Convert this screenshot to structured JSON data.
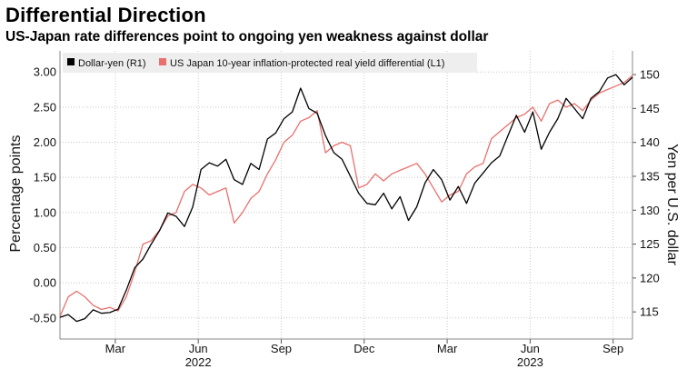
{
  "chart_data": {
    "type": "line",
    "title": "Differential Direction",
    "subtitle": "US-Japan rate differences point to ongoing yen weakness against dollar",
    "ylabel_left": "Percentage points",
    "ylabel_right": "Yen per U.S. dollar",
    "left_axis": {
      "min": -0.8,
      "max": 3.3,
      "ticks": [
        "-0.50",
        "0.00",
        "0.50",
        "1.00",
        "1.50",
        "2.00",
        "2.50",
        "3.00"
      ],
      "tick_values": [
        -0.5,
        0,
        0.5,
        1,
        1.5,
        2,
        2.5,
        3
      ]
    },
    "right_axis": {
      "min": 111,
      "max": 153.5,
      "ticks": [
        "115",
        "120",
        "125",
        "130",
        "135",
        "140",
        "145",
        "150"
      ],
      "tick_values": [
        115,
        120,
        125,
        130,
        135,
        140,
        145,
        150
      ]
    },
    "x_range_months": [
      0,
      20.7
    ],
    "x_ticks": [
      {
        "label": "Mar",
        "month": 2
      },
      {
        "label": "Jun",
        "month": 5
      },
      {
        "label": "Sep",
        "month": 8
      },
      {
        "label": "Dec",
        "month": 11
      },
      {
        "label": "Mar",
        "month": 14
      },
      {
        "label": "Jun",
        "month": 17
      },
      {
        "label": "Sep",
        "month": 20
      }
    ],
    "year_labels": [
      {
        "label": "2022",
        "month": 5
      },
      {
        "label": "2023",
        "month": 17
      }
    ],
    "grid": true,
    "legend_position": "top",
    "series": [
      {
        "name": "Dollar-yen (R1)",
        "axis": "right",
        "color": "#000000",
        "x": [
          0,
          0.3,
          0.6,
          0.9,
          1.2,
          1.5,
          1.8,
          2.1,
          2.4,
          2.7,
          3.0,
          3.3,
          3.6,
          3.9,
          4.2,
          4.5,
          4.8,
          5.1,
          5.4,
          5.7,
          6.0,
          6.3,
          6.6,
          6.9,
          7.2,
          7.5,
          7.8,
          8.1,
          8.4,
          8.7,
          9.0,
          9.3,
          9.6,
          9.9,
          10.2,
          10.5,
          10.8,
          11.1,
          11.4,
          11.7,
          12.0,
          12.3,
          12.6,
          12.9,
          13.2,
          13.5,
          13.8,
          14.1,
          14.4,
          14.7,
          15.0,
          15.3,
          15.6,
          15.9,
          16.2,
          16.5,
          16.8,
          17.1,
          17.4,
          17.7,
          18.0,
          18.3,
          18.6,
          18.9,
          19.2,
          19.5,
          19.8,
          20.1,
          20.4,
          20.7
        ],
        "values": [
          114.2,
          114.6,
          113.6,
          114.0,
          115.3,
          114.8,
          114.9,
          115.4,
          118.2,
          121.5,
          122.8,
          125.0,
          127.0,
          129.6,
          129.1,
          127.6,
          130.5,
          136.0,
          137.0,
          136.5,
          137.5,
          134.5,
          133.8,
          136.9,
          136.0,
          140.5,
          141.4,
          143.5,
          144.5,
          148.0,
          145.0,
          144.3,
          141.0,
          138.5,
          137.5,
          135.0,
          132.5,
          131.0,
          130.8,
          132.5,
          130.2,
          132.0,
          128.5,
          130.5,
          134.0,
          136.0,
          134.5,
          131.5,
          133.5,
          131.0,
          134.0,
          135.5,
          137.0,
          138.0,
          141.0,
          144.0,
          141.5,
          144.5,
          139.0,
          141.5,
          143.5,
          146.5,
          145.0,
          143.5,
          146.5,
          147.5,
          149.5,
          150.0,
          148.5,
          149.6
        ]
      },
      {
        "name": "US Japan 10-year inflation-protected real yield differential (L1)",
        "axis": "left",
        "color": "#e8706d",
        "x": [
          0,
          0.3,
          0.6,
          0.9,
          1.2,
          1.5,
          1.8,
          2.1,
          2.4,
          2.7,
          3.0,
          3.3,
          3.6,
          3.9,
          4.2,
          4.5,
          4.8,
          5.1,
          5.4,
          5.7,
          6.0,
          6.3,
          6.6,
          6.9,
          7.2,
          7.5,
          7.8,
          8.1,
          8.4,
          8.7,
          9.0,
          9.3,
          9.6,
          9.9,
          10.2,
          10.5,
          10.8,
          11.1,
          11.4,
          11.7,
          12.0,
          12.3,
          12.6,
          12.9,
          13.2,
          13.5,
          13.8,
          14.1,
          14.4,
          14.7,
          15.0,
          15.3,
          15.6,
          15.9,
          16.2,
          16.5,
          16.8,
          17.1,
          17.4,
          17.7,
          18.0,
          18.3,
          18.6,
          18.9,
          19.2,
          19.5,
          19.8,
          20.1,
          20.4,
          20.7
        ],
        "values": [
          -0.48,
          -0.2,
          -0.12,
          -0.2,
          -0.32,
          -0.38,
          -0.35,
          -0.4,
          -0.2,
          0.15,
          0.55,
          0.6,
          0.75,
          0.95,
          1.0,
          1.3,
          1.4,
          1.35,
          1.25,
          1.3,
          1.35,
          0.85,
          1.0,
          1.2,
          1.3,
          1.55,
          1.75,
          2.0,
          2.1,
          2.3,
          2.35,
          2.45,
          1.85,
          1.95,
          2.0,
          1.95,
          1.35,
          1.4,
          1.55,
          1.45,
          1.55,
          1.6,
          1.65,
          1.7,
          1.55,
          1.35,
          1.15,
          1.25,
          1.3,
          1.55,
          1.65,
          1.7,
          2.05,
          2.15,
          2.25,
          2.35,
          2.4,
          2.5,
          2.3,
          2.55,
          2.6,
          2.5,
          2.55,
          2.45,
          2.6,
          2.7,
          2.75,
          2.8,
          2.85,
          2.95
        ]
      }
    ]
  }
}
